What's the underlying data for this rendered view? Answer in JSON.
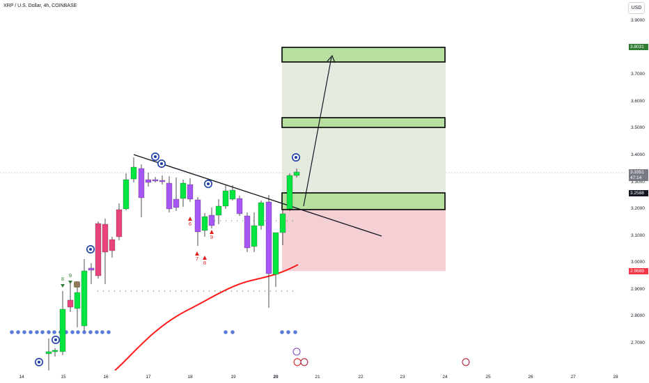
{
  "header": {
    "symbol_title": "XRP / U.S. Dollar, 4h, COINBASE"
  },
  "toolbar": {
    "currency_label": "USD"
  },
  "price_scale": {
    "ticks": [
      "3.9000",
      "3.8000",
      "3.7000",
      "3.6000",
      "3.5000",
      "3.4000",
      "3.3000",
      "3.2000",
      "3.1000",
      "3.0000",
      "2.9000",
      "2.8000",
      "2.7000"
    ],
    "badges": [
      {
        "label": "3.8031",
        "value": 3.8031,
        "color": "#2e7d32"
      },
      {
        "label": "3.3351",
        "value": 3.3351,
        "color": "#787b86"
      },
      {
        "label": "47:14",
        "value": 3.316,
        "color": "#787b86"
      },
      {
        "label": "3.2588",
        "value": 3.2588,
        "color": "#131722"
      },
      {
        "label": "2.9689",
        "value": 2.9689,
        "color": "#f23645"
      }
    ]
  },
  "time_scale": {
    "ticks": [
      {
        "label": "14",
        "bold": false
      },
      {
        "label": "15",
        "bold": false
      },
      {
        "label": "16",
        "bold": false
      },
      {
        "label": "17",
        "bold": false
      },
      {
        "label": "18",
        "bold": false
      },
      {
        "label": "19",
        "bold": false
      },
      {
        "label": "20",
        "bold": true
      },
      {
        "label": "21",
        "bold": false
      },
      {
        "label": "22",
        "bold": false
      },
      {
        "label": "23",
        "bold": false
      },
      {
        "label": "24",
        "bold": false
      },
      {
        "label": "25",
        "bold": false
      },
      {
        "label": "26",
        "bold": false
      },
      {
        "label": "27",
        "bold": false
      },
      {
        "label": "28",
        "bold": false
      }
    ]
  },
  "colors": {
    "bull": "#00e640",
    "bear": "#e8437a",
    "neutral": "#a855f7",
    "target_zone": "#b7dfa0",
    "profit_area": "#dfe6d8",
    "loss_area": "#f2c8cc",
    "moving_average": "#ff1a1a",
    "trendline": "#131722",
    "dots": "#5b7bd6"
  },
  "annotations": {
    "td_counts": [
      "8",
      "9",
      "6",
      "9",
      "7",
      "8"
    ]
  }
}
